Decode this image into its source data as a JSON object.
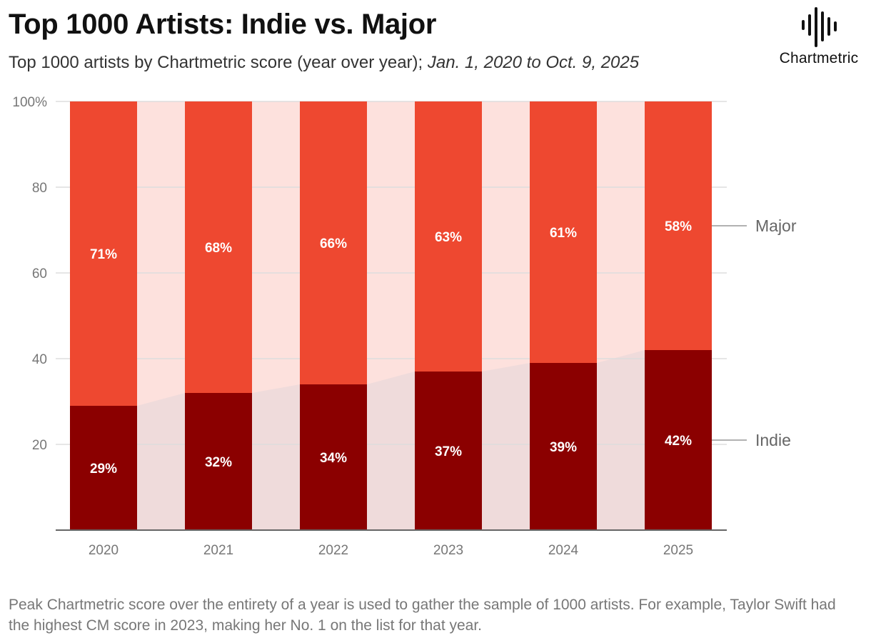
{
  "header": {
    "title": "Top 1000 Artists: Indie vs. Major",
    "subtitle_main": "Top 1000 artists by Chartmetric score (year over year);",
    "subtitle_range": "Jan. 1, 2020 to Oct. 9, 2025"
  },
  "logo": {
    "text": "Chartmetric",
    "icon": "soundwave-icon"
  },
  "colors": {
    "major": "#EE4830",
    "indie": "#8B0000",
    "gap_major": "#FDE1DD",
    "gap_indie": "#EFDBDB",
    "grid": "#DDDDDD",
    "axis": "#666666"
  },
  "chart_data": {
    "type": "bar",
    "stacked": true,
    "categories": [
      "2020",
      "2021",
      "2022",
      "2023",
      "2024",
      "2025"
    ],
    "series": [
      {
        "name": "Indie",
        "values": [
          29,
          32,
          34,
          37,
          39,
          42
        ],
        "labels": [
          "29%",
          "32%",
          "34%",
          "37%",
          "39%",
          "42%"
        ]
      },
      {
        "name": "Major",
        "values": [
          71,
          68,
          66,
          63,
          61,
          58
        ],
        "labels": [
          "71%",
          "68%",
          "66%",
          "63%",
          "61%",
          "58%"
        ]
      }
    ],
    "ylim": [
      0,
      100
    ],
    "yticks": [
      20,
      40,
      60,
      80,
      100
    ],
    "ytick_labels": [
      "20",
      "40",
      "60",
      "80",
      "100%"
    ],
    "legend": {
      "position": "right",
      "entries": [
        "Major",
        "Indie"
      ]
    }
  },
  "footnote": "Peak Chartmetric score over the entirety of a year is used to gather the sample of 1000 artists. For example, Taylor Swift had the highest CM score in 2023, making her No. 1 on the list for that year."
}
